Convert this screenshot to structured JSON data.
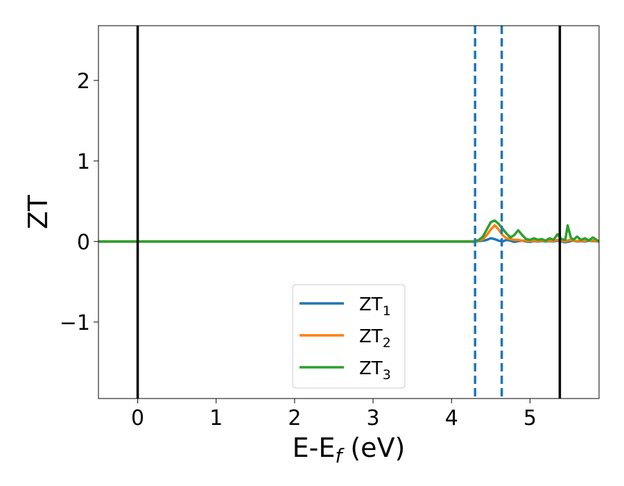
{
  "chart_data": {
    "type": "line",
    "xlabel": "E-E",
    "xlabel_sub": "f",
    "xlabel_unit": "(eV)",
    "ylabel": "ZT",
    "xlim": [
      -0.5,
      5.88
    ],
    "ylim": [
      -1.95,
      2.68
    ],
    "xticks": [
      0,
      1,
      2,
      3,
      4,
      5
    ],
    "yticks": [
      -1,
      0,
      1,
      2
    ],
    "xtick_labels": [
      "0",
      "1",
      "2",
      "3",
      "4",
      "5"
    ],
    "ytick_labels": [
      "−1",
      "0",
      "1",
      "2"
    ],
    "grid": false,
    "legend": "lower-center",
    "vlines_solid": [
      0.0,
      5.38
    ],
    "vlines_dashed": [
      4.3,
      4.64
    ],
    "vline_solid_color": "#000000",
    "vline_dashed_color": "#1f77b4",
    "series": [
      {
        "name": "ZT",
        "sub": "1",
        "color": "#1f77b4",
        "x": [
          -0.5,
          4.3,
          4.35,
          4.4,
          4.45,
          4.5,
          4.55,
          4.6,
          4.65,
          4.7,
          4.75,
          4.8,
          4.85,
          4.9,
          4.95,
          5.0,
          5.05,
          5.1,
          5.15,
          5.2,
          5.25,
          5.3,
          5.35,
          5.4,
          5.45,
          5.5,
          5.55,
          5.6,
          5.65,
          5.7,
          5.75,
          5.8,
          5.88
        ],
        "values": [
          0,
          0,
          0.005,
          0.01,
          0.02,
          0.04,
          0.03,
          0.01,
          0.0,
          0.02,
          0.01,
          -0.005,
          0.005,
          0.01,
          0.0,
          -0.005,
          0.005,
          0.0,
          0.005,
          0.0,
          0.005,
          0.0,
          0.01,
          0.0,
          -0.01,
          0.0,
          0.01,
          0.0,
          0.005,
          0.0,
          0.01,
          0.005,
          0.0
        ]
      },
      {
        "name": "ZT",
        "sub": "2",
        "color": "#ff7f0e",
        "x": [
          -0.5,
          4.3,
          4.35,
          4.4,
          4.45,
          4.5,
          4.55,
          4.6,
          4.65,
          4.7,
          4.75,
          4.8,
          4.85,
          4.9,
          4.95,
          5.0,
          5.05,
          5.1,
          5.15,
          5.2,
          5.25,
          5.3,
          5.35,
          5.4,
          5.45,
          5.5,
          5.55,
          5.6,
          5.65,
          5.7,
          5.75,
          5.8,
          5.88
        ],
        "values": [
          0,
          0,
          0.01,
          0.03,
          0.08,
          0.15,
          0.2,
          0.15,
          0.08,
          0.04,
          0.03,
          0.02,
          0.02,
          0.01,
          0.01,
          0.005,
          0.01,
          0.005,
          0.01,
          0.005,
          0.01,
          0.005,
          0.02,
          0.01,
          0.0,
          0.02,
          0.01,
          0.005,
          0.01,
          0.005,
          0.02,
          0.01,
          0.0
        ]
      },
      {
        "name": "ZT",
        "sub": "3",
        "color": "#2ca02c",
        "x": [
          -0.5,
          4.3,
          4.35,
          4.4,
          4.45,
          4.5,
          4.55,
          4.6,
          4.65,
          4.7,
          4.75,
          4.8,
          4.85,
          4.9,
          4.95,
          5.0,
          5.05,
          5.1,
          5.15,
          5.2,
          5.25,
          5.3,
          5.35,
          5.4,
          5.45,
          5.48,
          5.52,
          5.55,
          5.6,
          5.65,
          5.7,
          5.75,
          5.8,
          5.88
        ],
        "values": [
          0,
          0,
          0.02,
          0.06,
          0.15,
          0.24,
          0.26,
          0.22,
          0.16,
          0.1,
          0.05,
          0.08,
          0.14,
          0.08,
          0.03,
          0.02,
          0.04,
          0.02,
          0.03,
          0.01,
          0.04,
          0.02,
          0.09,
          0.03,
          0.02,
          0.2,
          0.05,
          0.02,
          0.06,
          0.02,
          0.04,
          0.01,
          0.05,
          0.0
        ]
      }
    ]
  }
}
